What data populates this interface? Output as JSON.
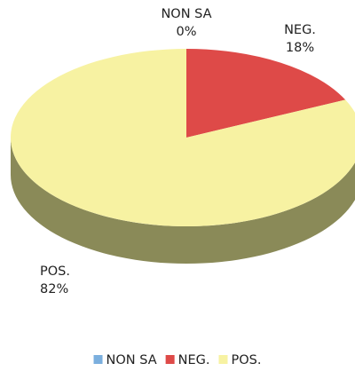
{
  "chart_data": {
    "type": "pie",
    "style": "3d",
    "title": "",
    "slices": [
      {
        "name": "NON SA",
        "value": 0,
        "label": "0%",
        "color": "#7bafde"
      },
      {
        "name": "NEG.",
        "value": 18,
        "label": "18%",
        "color": "#de4a48"
      },
      {
        "name": "POS.",
        "value": 82,
        "label": "82%",
        "color": "#f7f2a2",
        "side_color": "#8a8a58"
      }
    ],
    "legend": {
      "position": "bottom",
      "items": [
        "NON SA",
        "NEG.",
        "POS."
      ]
    }
  }
}
